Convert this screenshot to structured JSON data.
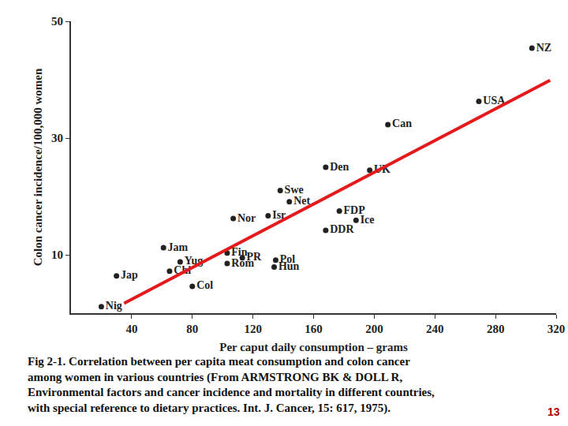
{
  "chart_data": {
    "type": "scatter",
    "y_label": "Colon cancer incidence/100,000 women",
    "x_label": "Per caput daily consumption – grams",
    "caption": [
      "Fig 2-1. Correlation between per capita meat consumption and colon cancer",
      "among women in various countries (From ARMSTRONG BK & DOLL R,",
      "Environmental factors and cancer incidence and mortality in different countries,",
      "with special reference to dietary practices. Int. J. Cancer, 15: 617, 1975)."
    ],
    "page": "13",
    "xlim": [
      0,
      320
    ],
    "xticks": [
      40,
      80,
      120,
      160,
      200,
      240,
      280,
      320
    ],
    "ylim": [
      0,
      50
    ],
    "yticks": [
      10,
      30,
      50
    ],
    "grid": false,
    "series": [
      {
        "type": "scatter",
        "marker": "circle",
        "color": "#222222",
        "labels": [
          "NZ",
          "USA",
          "Can",
          "Den",
          "UK",
          "Swe",
          "Nor",
          "Net",
          "Isr",
          "FDP",
          "Ice",
          "DDR",
          "Jam",
          "Fin",
          "PR",
          "Pol",
          "Rom",
          "Hun",
          "Yug",
          "Chi",
          "Col",
          "Jap",
          "Nig"
        ],
        "x": [
          304,
          269,
          209,
          168,
          197,
          138,
          107,
          144,
          130,
          177,
          188,
          168,
          61,
          103,
          113,
          135,
          103,
          134,
          72,
          65,
          80,
          30,
          20
        ],
        "values": [
          45.4,
          36.3,
          32.3,
          25,
          24.5,
          21,
          16.2,
          19.1,
          16.7,
          17.5,
          15.9,
          14.2,
          11.2,
          10.3,
          9.5,
          9.1,
          8.5,
          7.9,
          8.8,
          7.2,
          4.6,
          6.4,
          1.1
        ]
      },
      {
        "type": "line",
        "line_style": "solid",
        "color": "#e41a1c",
        "x": [
          35,
          316
        ],
        "values": [
          1.7,
          39.9
        ]
      }
    ]
  }
}
